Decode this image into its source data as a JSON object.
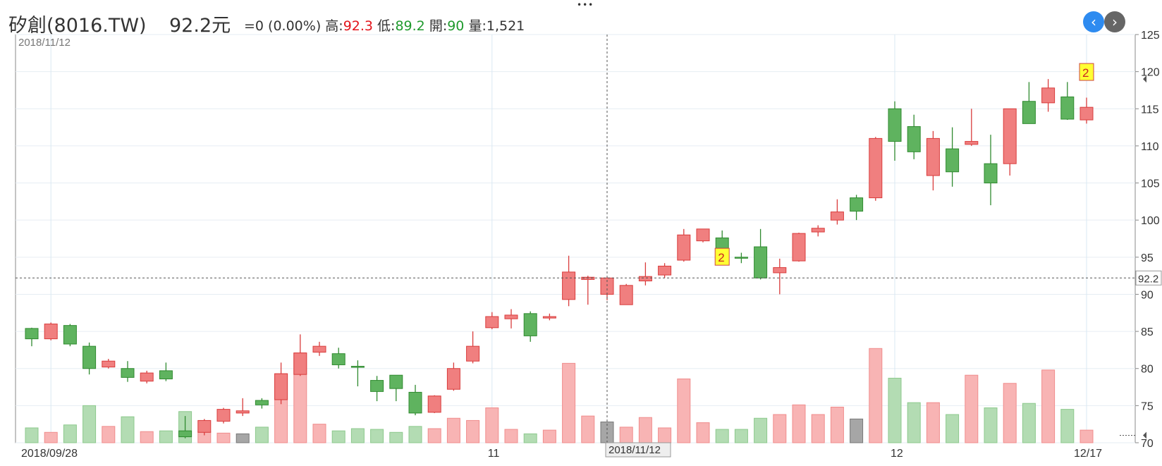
{
  "header": {
    "name": "矽創(8016.TW)",
    "price": "92.2元",
    "change": "=0 (0.00%)",
    "high_label": "高:",
    "high_value": "92.3",
    "low_label": "低:",
    "low_value": "89.2",
    "open_label": "開:",
    "open_value": "90",
    "volume_label": "量:",
    "volume_value": "1,521"
  },
  "chart_data": {
    "type": "candlestick",
    "ylim": [
      70,
      125
    ],
    "yticks": [
      70,
      75,
      80,
      85,
      90,
      95,
      100,
      105,
      110,
      115,
      120,
      125
    ],
    "date_labels": [
      "2018/09/28",
      "11",
      "12",
      "12/17"
    ],
    "top_left_date": "2018/11/12",
    "crosshair_date": "2018/11/12",
    "crosshair_price": "92.2",
    "badge_label": "2",
    "colors": {
      "up": "#f07f7f",
      "down": "#5fb35f",
      "up_edge": "#d93c3c",
      "down_edge": "#2f8a2f",
      "vol_up": "#f8b4b4",
      "vol_down": "#b3dcb3",
      "vol_flat": "#a6a6a6"
    },
    "candles": [
      {
        "o": 85.4,
        "c": 84.0,
        "h": 85.5,
        "l": 83.0,
        "v": 72
      },
      {
        "o": 84.0,
        "c": 86.0,
        "h": 86.2,
        "l": 83.8,
        "v": 71.4
      },
      {
        "o": 85.8,
        "c": 83.3,
        "h": 86.0,
        "l": 83.0,
        "v": 72.4
      },
      {
        "o": 83.0,
        "c": 80.0,
        "h": 83.5,
        "l": 79.2,
        "v": 75
      },
      {
        "o": 80.2,
        "c": 81.0,
        "h": 81.3,
        "l": 80.0,
        "v": 72.2
      },
      {
        "o": 80.0,
        "c": 78.8,
        "h": 81.0,
        "l": 78.2,
        "v": 73.5
      },
      {
        "o": 78.3,
        "c": 79.4,
        "h": 79.7,
        "l": 78.0,
        "v": 71.5
      },
      {
        "o": 79.7,
        "c": 78.6,
        "h": 80.8,
        "l": 78.3,
        "v": 71.6
      },
      {
        "o": 71.6,
        "c": 70.8,
        "h": 73.6,
        "l": 70.6,
        "v": 74.2
      },
      {
        "o": 71.4,
        "c": 73.0,
        "h": 73.2,
        "l": 71.0,
        "v": 71.5
      },
      {
        "o": 72.9,
        "c": 74.5,
        "h": 74.7,
        "l": 72.6,
        "v": 71.3
      },
      {
        "o": 74.0,
        "c": 74.3,
        "h": 76.0,
        "l": 73.6,
        "v": 71.2,
        "flat": true
      },
      {
        "o": 75.7,
        "c": 75.1,
        "h": 76.0,
        "l": 74.6,
        "v": 72.1
      },
      {
        "o": 75.8,
        "c": 79.3,
        "h": 80.8,
        "l": 75.2,
        "v": 79.3
      },
      {
        "o": 79.2,
        "c": 82.1,
        "h": 84.6,
        "l": 79.0,
        "v": 82.1
      },
      {
        "o": 82.2,
        "c": 83.0,
        "h": 83.6,
        "l": 81.7,
        "v": 72.5
      },
      {
        "o": 82.0,
        "c": 80.5,
        "h": 82.8,
        "l": 80.0,
        "v": 71.6
      },
      {
        "o": 80.3,
        "c": 80.2,
        "h": 81.1,
        "l": 77.6,
        "v": 71.9
      },
      {
        "o": 78.4,
        "c": 76.9,
        "h": 79.0,
        "l": 75.6,
        "v": 71.8
      },
      {
        "o": 79.1,
        "c": 77.3,
        "h": 79.1,
        "l": 75.6,
        "v": 71.4
      },
      {
        "o": 76.8,
        "c": 74.0,
        "h": 77.8,
        "l": 73.7,
        "v": 72.2
      },
      {
        "o": 74.1,
        "c": 76.3,
        "h": 76.4,
        "l": 74.0,
        "v": 71.9
      },
      {
        "o": 77.2,
        "c": 80.0,
        "h": 80.8,
        "l": 77.0,
        "v": 73.3
      },
      {
        "o": 81.0,
        "c": 83.0,
        "h": 85.0,
        "l": 80.7,
        "v": 73.0
      },
      {
        "o": 85.5,
        "c": 87.0,
        "h": 87.6,
        "l": 85.3,
        "v": 74.7
      },
      {
        "o": 86.7,
        "c": 87.2,
        "h": 88.0,
        "l": 85.4,
        "v": 71.8
      },
      {
        "o": 87.4,
        "c": 84.4,
        "h": 87.7,
        "l": 83.6,
        "v": 71.2
      },
      {
        "o": 86.8,
        "c": 87.0,
        "h": 87.4,
        "l": 86.5,
        "v": 71.7
      },
      {
        "o": 89.3,
        "c": 93.0,
        "h": 95.2,
        "l": 88.4,
        "v": 80.7
      },
      {
        "o": 92.0,
        "c": 92.3,
        "h": 92.5,
        "l": 88.6,
        "v": 73.6
      },
      {
        "o": 90.0,
        "c": 92.2,
        "h": 92.3,
        "l": 89.2,
        "v": 72.8,
        "flat": true
      },
      {
        "o": 88.6,
        "c": 91.2,
        "h": 91.4,
        "l": 88.6,
        "v": 72.1
      },
      {
        "o": 91.8,
        "c": 92.4,
        "h": 94.3,
        "l": 91.2,
        "v": 73.4
      },
      {
        "o": 92.6,
        "c": 93.8,
        "h": 94.2,
        "l": 92.2,
        "v": 72
      },
      {
        "o": 94.6,
        "c": 98.0,
        "h": 98.8,
        "l": 94.4,
        "v": 78.6
      },
      {
        "o": 97.2,
        "c": 98.8,
        "h": 98.8,
        "l": 97.0,
        "v": 72.7
      },
      {
        "o": 97.6,
        "c": 96.2,
        "h": 98.6,
        "l": 96.0,
        "v": 71.8
      },
      {
        "o": 95.0,
        "c": 94.9,
        "h": 95.6,
        "l": 94.2,
        "v": 71.8
      },
      {
        "o": 96.4,
        "c": 92.2,
        "h": 98.8,
        "l": 92.0,
        "v": 73.3
      },
      {
        "o": 92.9,
        "c": 93.6,
        "h": 94.8,
        "l": 90.0,
        "v": 73.8
      },
      {
        "o": 94.5,
        "c": 98.2,
        "h": 98.3,
        "l": 94.4,
        "v": 75.1
      },
      {
        "o": 98.4,
        "c": 98.9,
        "h": 99.3,
        "l": 97.8,
        "v": 73.8
      },
      {
        "o": 100.0,
        "c": 101.1,
        "h": 102.8,
        "l": 99.4,
        "v": 74.8
      },
      {
        "o": 103.0,
        "c": 101.2,
        "h": 103.4,
        "l": 100.0,
        "v": 73.2,
        "flat": true
      },
      {
        "o": 103.0,
        "c": 111.0,
        "h": 111.2,
        "l": 102.6,
        "v": 82.7
      },
      {
        "o": 115.0,
        "c": 110.6,
        "h": 116.0,
        "l": 108.0,
        "v": 78.7
      },
      {
        "o": 112.6,
        "c": 109.2,
        "h": 114.2,
        "l": 108.2,
        "v": 75.4
      },
      {
        "o": 106.0,
        "c": 111.0,
        "h": 112.0,
        "l": 104.0,
        "v": 75.4
      },
      {
        "o": 109.6,
        "c": 106.5,
        "h": 112.5,
        "l": 104.5,
        "v": 73.8
      },
      {
        "o": 110.2,
        "c": 110.6,
        "h": 115.0,
        "l": 110.0,
        "v": 79.1
      },
      {
        "o": 107.6,
        "c": 105.0,
        "h": 111.5,
        "l": 102.0,
        "v": 74.7
      },
      {
        "o": 107.6,
        "c": 115.0,
        "h": 115.0,
        "l": 106.0,
        "v": 78
      },
      {
        "o": 116.0,
        "c": 113.0,
        "h": 118.6,
        "l": 113.0,
        "v": 75.3
      },
      {
        "o": 115.8,
        "c": 117.8,
        "h": 119.0,
        "l": 114.6,
        "v": 79.8
      },
      {
        "o": 116.6,
        "c": 113.6,
        "h": 118.6,
        "l": 113.5,
        "v": 74.5
      },
      {
        "o": 113.5,
        "c": 115.2,
        "h": 116.5,
        "l": 113.0,
        "v": 71.7
      }
    ]
  }
}
